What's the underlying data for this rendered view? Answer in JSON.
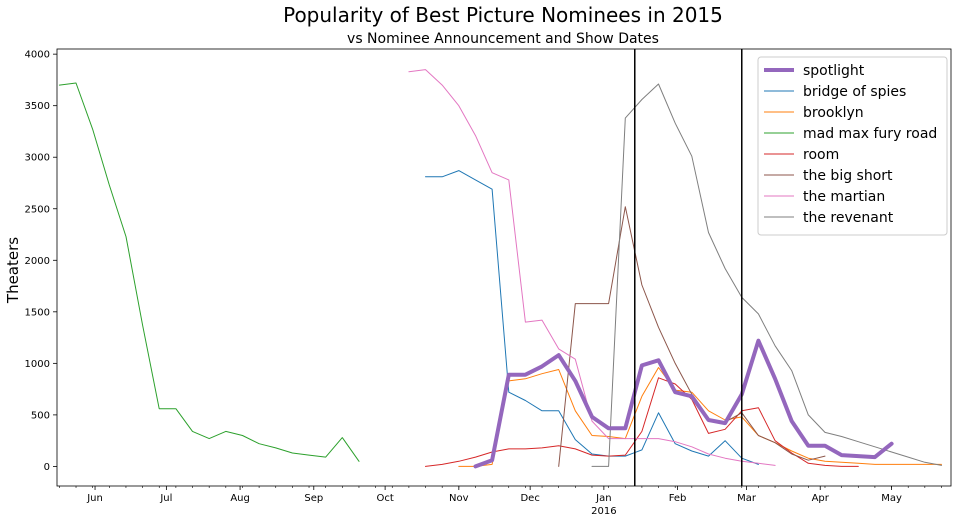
{
  "chart_data": {
    "type": "line",
    "title": "Popularity of Best Picture Nominees in 2015",
    "subtitle": "vs Nominee Announcement and Show Dates",
    "xlabel": "",
    "ylabel": "Theaters",
    "xlim": [
      "2015-05-16",
      "2016-05-26"
    ],
    "ylim": [
      -190,
      4050
    ],
    "grid": false,
    "legend_position": "top-right",
    "yticks": [
      0,
      500,
      1000,
      1500,
      2000,
      2500,
      3000,
      3500,
      4000
    ],
    "xticks": [
      {
        "date": "2015-06-01",
        "label": "Jun"
      },
      {
        "date": "2015-07-01",
        "label": "Jul"
      },
      {
        "date": "2015-08-01",
        "label": "Aug"
      },
      {
        "date": "2015-09-01",
        "label": "Sep"
      },
      {
        "date": "2015-10-01",
        "label": "Oct"
      },
      {
        "date": "2015-11-01",
        "label": "Nov"
      },
      {
        "date": "2015-12-01",
        "label": "Dec"
      },
      {
        "date": "2016-01-01",
        "label": "Jan",
        "sublabel": "2016"
      },
      {
        "date": "2016-02-01",
        "label": "Feb"
      },
      {
        "date": "2016-03-01",
        "label": "Mar"
      },
      {
        "date": "2016-04-01",
        "label": "Apr"
      },
      {
        "date": "2016-05-01",
        "label": "May"
      }
    ],
    "vlines": [
      "2016-01-14",
      "2016-02-28"
    ],
    "series": [
      {
        "name": "spotlight",
        "color": "#9467bd",
        "width": 4,
        "x": [
          "2015-11-08",
          "2015-11-15",
          "2015-11-22",
          "2015-11-29",
          "2015-12-06",
          "2015-12-13",
          "2015-12-20",
          "2015-12-27",
          "2016-01-03",
          "2016-01-10",
          "2016-01-17",
          "2016-01-24",
          "2016-01-31",
          "2016-02-07",
          "2016-02-14",
          "2016-02-21",
          "2016-02-28",
          "2016-03-06",
          "2016-03-13",
          "2016-03-20",
          "2016-03-27",
          "2016-04-03",
          "2016-04-10",
          "2016-04-17",
          "2016-04-24",
          "2016-05-01"
        ],
        "y": [
          0,
          60,
          890,
          890,
          970,
          1080,
          830,
          480,
          370,
          370,
          980,
          1030,
          720,
          680,
          450,
          420,
          700,
          1220,
          850,
          440,
          200,
          200,
          110,
          100,
          90,
          220
        ]
      },
      {
        "name": "bridge of spies",
        "color": "#1f77b4",
        "width": 1,
        "x": [
          "2015-10-18",
          "2015-10-25",
          "2015-11-01",
          "2015-11-08",
          "2015-11-15",
          "2015-11-22",
          "2015-11-29",
          "2015-12-06",
          "2015-12-13",
          "2015-12-20",
          "2015-12-27",
          "2016-01-03",
          "2016-01-10",
          "2016-01-17",
          "2016-01-24",
          "2016-01-31",
          "2016-02-07",
          "2016-02-14",
          "2016-02-21",
          "2016-02-28",
          "2016-03-06"
        ],
        "y": [
          2810,
          2810,
          2870,
          2780,
          2690,
          720,
          640,
          540,
          540,
          260,
          120,
          100,
          100,
          160,
          520,
          220,
          150,
          100,
          250,
          80,
          20
        ]
      },
      {
        "name": "brooklyn",
        "color": "#ff7f0e",
        "width": 1,
        "x": [
          "2015-11-01",
          "2015-11-08",
          "2015-11-15",
          "2015-11-22",
          "2015-11-29",
          "2015-12-06",
          "2015-12-13",
          "2015-12-20",
          "2015-12-27",
          "2016-01-03",
          "2016-01-10",
          "2016-01-17",
          "2016-01-24",
          "2016-01-31",
          "2016-02-07",
          "2016-02-14",
          "2016-02-21",
          "2016-02-28",
          "2016-03-06",
          "2016-03-13",
          "2016-03-20",
          "2016-03-27",
          "2016-04-03",
          "2016-04-10",
          "2016-04-17",
          "2016-04-24",
          "2016-05-01",
          "2016-05-08",
          "2016-05-15",
          "2016-05-22"
        ],
        "y": [
          0,
          0,
          20,
          830,
          850,
          900,
          940,
          540,
          300,
          290,
          270,
          680,
          960,
          740,
          720,
          540,
          450,
          480,
          300,
          230,
          150,
          80,
          50,
          40,
          30,
          20,
          20,
          20,
          20,
          20
        ]
      },
      {
        "name": "mad max fury road",
        "color": "#2ca02c",
        "width": 1,
        "x": [
          "2015-05-17",
          "2015-05-24",
          "2015-05-31",
          "2015-06-07",
          "2015-06-14",
          "2015-06-21",
          "2015-06-28",
          "2015-07-05",
          "2015-07-12",
          "2015-07-19",
          "2015-07-26",
          "2015-08-02",
          "2015-08-09",
          "2015-08-16",
          "2015-08-23",
          "2015-08-30",
          "2015-09-06",
          "2015-09-13",
          "2015-09-20"
        ],
        "y": [
          3700,
          3720,
          3270,
          2730,
          2230,
          1370,
          560,
          560,
          340,
          270,
          340,
          300,
          220,
          180,
          130,
          110,
          90,
          280,
          50
        ]
      },
      {
        "name": "room",
        "color": "#d62728",
        "width": 1,
        "x": [
          "2015-10-18",
          "2015-10-25",
          "2015-11-01",
          "2015-11-08",
          "2015-11-15",
          "2015-11-22",
          "2015-11-29",
          "2015-12-06",
          "2015-12-13",
          "2015-12-20",
          "2015-12-27",
          "2016-01-03",
          "2016-01-10",
          "2016-01-17",
          "2016-01-24",
          "2016-01-31",
          "2016-02-07",
          "2016-02-14",
          "2016-02-21",
          "2016-02-28",
          "2016-03-06",
          "2016-03-13",
          "2016-03-20",
          "2016-03-27",
          "2016-04-03",
          "2016-04-10",
          "2016-04-17"
        ],
        "y": [
          0,
          20,
          50,
          90,
          140,
          170,
          170,
          180,
          200,
          170,
          110,
          100,
          110,
          340,
          860,
          800,
          650,
          320,
          360,
          540,
          570,
          250,
          130,
          30,
          10,
          0,
          0
        ]
      },
      {
        "name": "the big short",
        "color": "#8c564b",
        "width": 1,
        "x": [
          "2015-12-13",
          "2015-12-20",
          "2015-12-27",
          "2016-01-03",
          "2016-01-10",
          "2016-01-17",
          "2016-01-24",
          "2016-01-31",
          "2016-02-07",
          "2016-02-14",
          "2016-02-21",
          "2016-02-28",
          "2016-03-06",
          "2016-03-13",
          "2016-03-20",
          "2016-03-27",
          "2016-04-03"
        ],
        "y": [
          0,
          1580,
          1580,
          1580,
          2520,
          1760,
          1350,
          1000,
          700,
          460,
          430,
          520,
          300,
          230,
          120,
          60,
          100
        ]
      },
      {
        "name": "the martian",
        "color": "#e377c2",
        "width": 1,
        "x": [
          "2015-10-11",
          "2015-10-18",
          "2015-10-25",
          "2015-11-01",
          "2015-11-08",
          "2015-11-15",
          "2015-11-22",
          "2015-11-29",
          "2015-12-06",
          "2015-12-13",
          "2015-12-20",
          "2015-12-27",
          "2016-01-03",
          "2016-01-10",
          "2016-01-17",
          "2016-01-24",
          "2016-01-31",
          "2016-02-07",
          "2016-02-14",
          "2016-02-21",
          "2016-02-28",
          "2016-03-06",
          "2016-03-13"
        ],
        "y": [
          3830,
          3850,
          3700,
          3500,
          3210,
          2850,
          2780,
          1400,
          1420,
          1140,
          1040,
          440,
          270,
          270,
          270,
          270,
          240,
          190,
          120,
          80,
          50,
          30,
          10
        ]
      },
      {
        "name": "the revenant",
        "color": "#7f7f7f",
        "width": 1,
        "x": [
          "2015-12-27",
          "2016-01-03",
          "2016-01-10",
          "2016-01-17",
          "2016-01-24",
          "2016-01-31",
          "2016-02-07",
          "2016-02-14",
          "2016-02-21",
          "2016-02-28",
          "2016-03-06",
          "2016-03-13",
          "2016-03-20",
          "2016-03-27",
          "2016-04-03",
          "2016-04-10",
          "2016-04-17",
          "2016-04-24",
          "2016-05-01",
          "2016-05-08",
          "2016-05-15",
          "2016-05-22"
        ],
        "y": [
          0,
          0,
          3380,
          3560,
          3710,
          3330,
          3010,
          2270,
          1920,
          1640,
          1480,
          1170,
          930,
          500,
          330,
          290,
          240,
          190,
          140,
          90,
          40,
          10
        ]
      }
    ]
  }
}
